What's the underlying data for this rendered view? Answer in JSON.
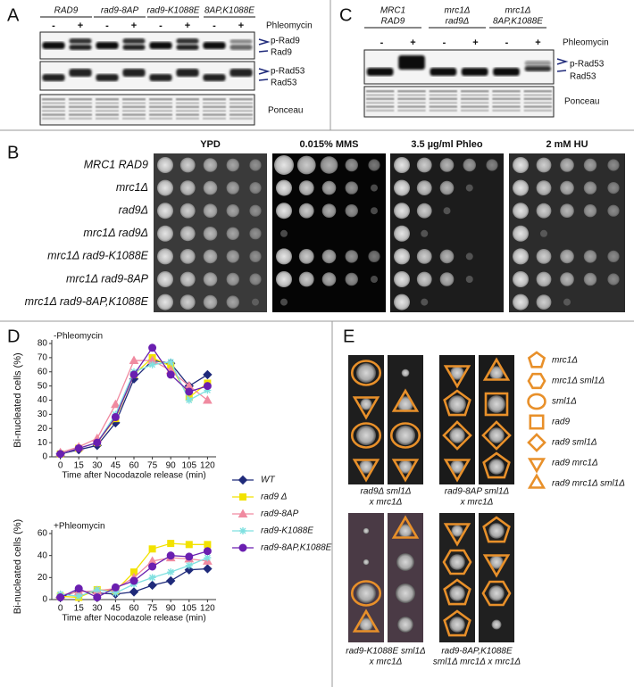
{
  "panels": {
    "a": "A",
    "b": "B",
    "c": "C",
    "d": "D",
    "e": "E"
  },
  "panel_a": {
    "strains": [
      "RAD9",
      "rad9-8AP",
      "rad9-K1088E",
      "8AP,K1088E"
    ],
    "treatment": "Phleomycin",
    "lanes": [
      "-",
      "+",
      "-",
      "+",
      "-",
      "+",
      "-",
      "+"
    ],
    "bands": [
      "p-Rad9",
      "Rad9",
      "p-Rad53",
      "Rad53"
    ],
    "loading": "Ponceau"
  },
  "panel_c": {
    "strains": [
      [
        "MRC1",
        "RAD9"
      ],
      [
        "mrc1Δ",
        "rad9Δ"
      ],
      [
        "mrc1Δ",
        "8AP,K1088E"
      ]
    ],
    "treatment": "Phleomycin",
    "lanes": [
      "-",
      "+",
      "-",
      "+",
      "-",
      "+"
    ],
    "bands": [
      "p-Rad53",
      "Rad53"
    ],
    "loading": "Ponceau"
  },
  "panel_b": {
    "conditions": [
      "YPD",
      "0.015% MMS",
      "3.5 µg/ml Phleo",
      "2 mM HU"
    ],
    "strains": [
      "MRC1 RAD9",
      "mrc1Δ",
      "rad9Δ",
      "mrc1Δ rad9Δ",
      "mrc1Δ rad9-K1088E",
      "mrc1Δ rad9-8AP",
      "mrc1Δ rad9-8AP,K1088E"
    ]
  },
  "chart_data": [
    {
      "type": "line",
      "subtitle": "-Phleomycin",
      "ylabel": "Bi-nucleated cells (%)",
      "xlabel": "Time after Nocodazole release (min)",
      "x": [
        0,
        15,
        30,
        45,
        60,
        75,
        90,
        105,
        120
      ],
      "xlim": [
        -7,
        127
      ],
      "xticks": [
        0,
        15,
        30,
        45,
        60,
        75,
        90,
        105,
        120
      ],
      "ylim": [
        0,
        80
      ],
      "yticks": [
        0,
        10,
        20,
        30,
        40,
        50,
        60,
        70,
        80
      ],
      "series": [
        {
          "color": "#1f2a7a",
          "marker": "diamond",
          "values": [
            2,
            5,
            8,
            24,
            55,
            68,
            66,
            50,
            58
          ]
        },
        {
          "color": "#f2e200",
          "marker": "square",
          "values": [
            2,
            6,
            10,
            27,
            58,
            70,
            64,
            42,
            52
          ]
        },
        {
          "color": "#f08aa0",
          "marker": "triangle",
          "values": [
            3,
            7,
            13,
            37,
            68,
            68,
            61,
            50,
            40
          ]
        },
        {
          "color": "#7fe0e0",
          "marker": "asterisk",
          "values": [
            2,
            6,
            10,
            30,
            60,
            65,
            67,
            40,
            47
          ]
        },
        {
          "color": "#6a1fb0",
          "marker": "circle",
          "values": [
            2,
            6,
            10,
            28,
            58,
            77,
            58,
            46,
            50
          ]
        }
      ]
    },
    {
      "type": "line",
      "subtitle": "+Phleomycin",
      "ylabel": "Bi-nucleated cells (%)",
      "xlabel": "Time after Nocodazole release (min)",
      "x": [
        0,
        15,
        30,
        45,
        60,
        75,
        90,
        105,
        120
      ],
      "xlim": [
        -7,
        127
      ],
      "xticks": [
        0,
        15,
        30,
        45,
        60,
        75,
        90,
        105,
        120
      ],
      "ylim": [
        0,
        60
      ],
      "yticks": [
        0,
        20,
        40,
        60
      ],
      "legend": "right",
      "series": [
        {
          "name": "WT",
          "color": "#1f2a7a",
          "marker": "diamond",
          "values": [
            2,
            8,
            6,
            5,
            7,
            13,
            17,
            27,
            28
          ]
        },
        {
          "name": "rad9 Δ",
          "color": "#f2e200",
          "marker": "square",
          "values": [
            3,
            2,
            9,
            8,
            25,
            46,
            51,
            50,
            50
          ]
        },
        {
          "name": "rad9-8AP",
          "color": "#f08aa0",
          "marker": "triangle",
          "values": [
            4,
            7,
            8,
            10,
            20,
            35,
            38,
            37,
            35
          ]
        },
        {
          "name": "rad9-K1088E",
          "color": "#7fe0e0",
          "marker": "asterisk",
          "values": [
            5,
            3,
            9,
            6,
            14,
            20,
            25,
            31,
            38
          ]
        },
        {
          "name": "rad9-8AP,K1088E",
          "color": "#6a1fb0",
          "marker": "circle",
          "values": [
            2,
            10,
            2,
            11,
            17,
            30,
            40,
            39,
            44
          ]
        }
      ]
    }
  ],
  "panel_e": {
    "crosses": [
      [
        "rad9Δ sml1Δ",
        "x mrc1Δ"
      ],
      [
        "rad9-8AP sml1Δ",
        "x mrc1Δ"
      ],
      [
        "rad9-K1088E sml1Δ",
        "x mrc1Δ"
      ],
      [
        "rad9-8AP,K1088E",
        "sml1Δ  mrc1Δ x mrc1Δ"
      ]
    ],
    "legend": [
      "mrc1Δ",
      "mrc1Δ sml1Δ",
      "sml1Δ",
      "rad9",
      "rad9 sml1Δ",
      "rad9 mrc1Δ",
      "rad9 mrc1Δ sml1Δ"
    ]
  }
}
